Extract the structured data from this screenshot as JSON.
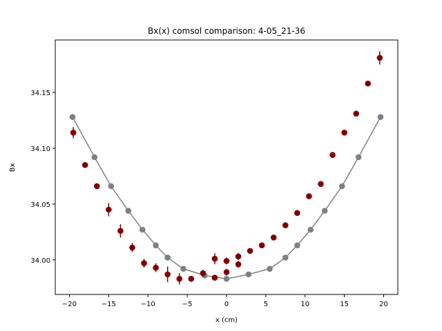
{
  "chart_data": {
    "type": "scatter",
    "title": "Bx(x) comsol comparison: 4-05_21-36",
    "xlabel": "x (cm)",
    "ylabel": "Bx",
    "xlim": [
      -21.8,
      21.8
    ],
    "ylim": [
      33.969,
      34.197
    ],
    "xticks": [
      -20,
      -15,
      -10,
      -5,
      0,
      5,
      10,
      15,
      20
    ],
    "xtick_labels": [
      "−20",
      "−15",
      "−10",
      "−5",
      "0",
      "5",
      "10",
      "15",
      "20"
    ],
    "yticks": [
      34.0,
      34.05,
      34.1,
      34.15
    ],
    "ytick_labels": [
      "34.00",
      "34.05",
      "34.10",
      "34.15"
    ],
    "grid": false,
    "series": [
      {
        "kind": "line-markers",
        "color": "#808080",
        "x": [
          -19.6,
          -16.8,
          -14.7,
          -12.5,
          -10.7,
          -9.0,
          -7.5,
          -5.5,
          -2.8,
          0.0,
          2.8,
          5.5,
          7.5,
          9.0,
          10.7,
          12.5,
          14.7,
          16.8,
          19.6
        ],
        "y": [
          34.128,
          34.092,
          34.066,
          34.044,
          34.027,
          34.013,
          34.002,
          33.992,
          33.986,
          33.983,
          33.987,
          33.992,
          34.002,
          34.013,
          34.027,
          34.044,
          34.066,
          34.092,
          34.128
        ]
      },
      {
        "kind": "errorbar",
        "color": "#800000",
        "x": [
          -19.5,
          -18.0,
          -16.5,
          -15.0,
          -13.5,
          -12.0,
          -10.5,
          -9.0,
          -7.5,
          -6.0,
          -4.5,
          -3.0,
          -1.5,
          0.0,
          1.5,
          3.0,
          4.5,
          6.0,
          7.5,
          9.0,
          10.5,
          12.0,
          13.5,
          15.0,
          16.5,
          18.0,
          19.5,
          -1.5,
          0.0,
          1.5
        ],
        "y": [
          34.114,
          34.085,
          34.066,
          34.045,
          34.026,
          34.011,
          33.997,
          33.993,
          33.987,
          33.983,
          33.983,
          33.988,
          33.984,
          33.989,
          33.996,
          34.008,
          34.013,
          34.02,
          34.031,
          34.042,
          34.057,
          34.068,
          34.094,
          34.114,
          34.131,
          34.158,
          34.181,
          34.001,
          33.999,
          34.003
        ],
        "yerr": [
          0.005,
          0.002,
          0.002,
          0.006,
          0.006,
          0.004,
          0.004,
          0.004,
          0.007,
          0.005,
          0.002,
          0.003,
          0.002,
          0.003,
          0.003,
          0.002,
          0.002,
          0.002,
          0.002,
          0.002,
          0.002,
          0.002,
          0.002,
          0.002,
          0.002,
          0.002,
          0.006,
          0.005,
          0.003,
          0.003
        ]
      }
    ]
  }
}
